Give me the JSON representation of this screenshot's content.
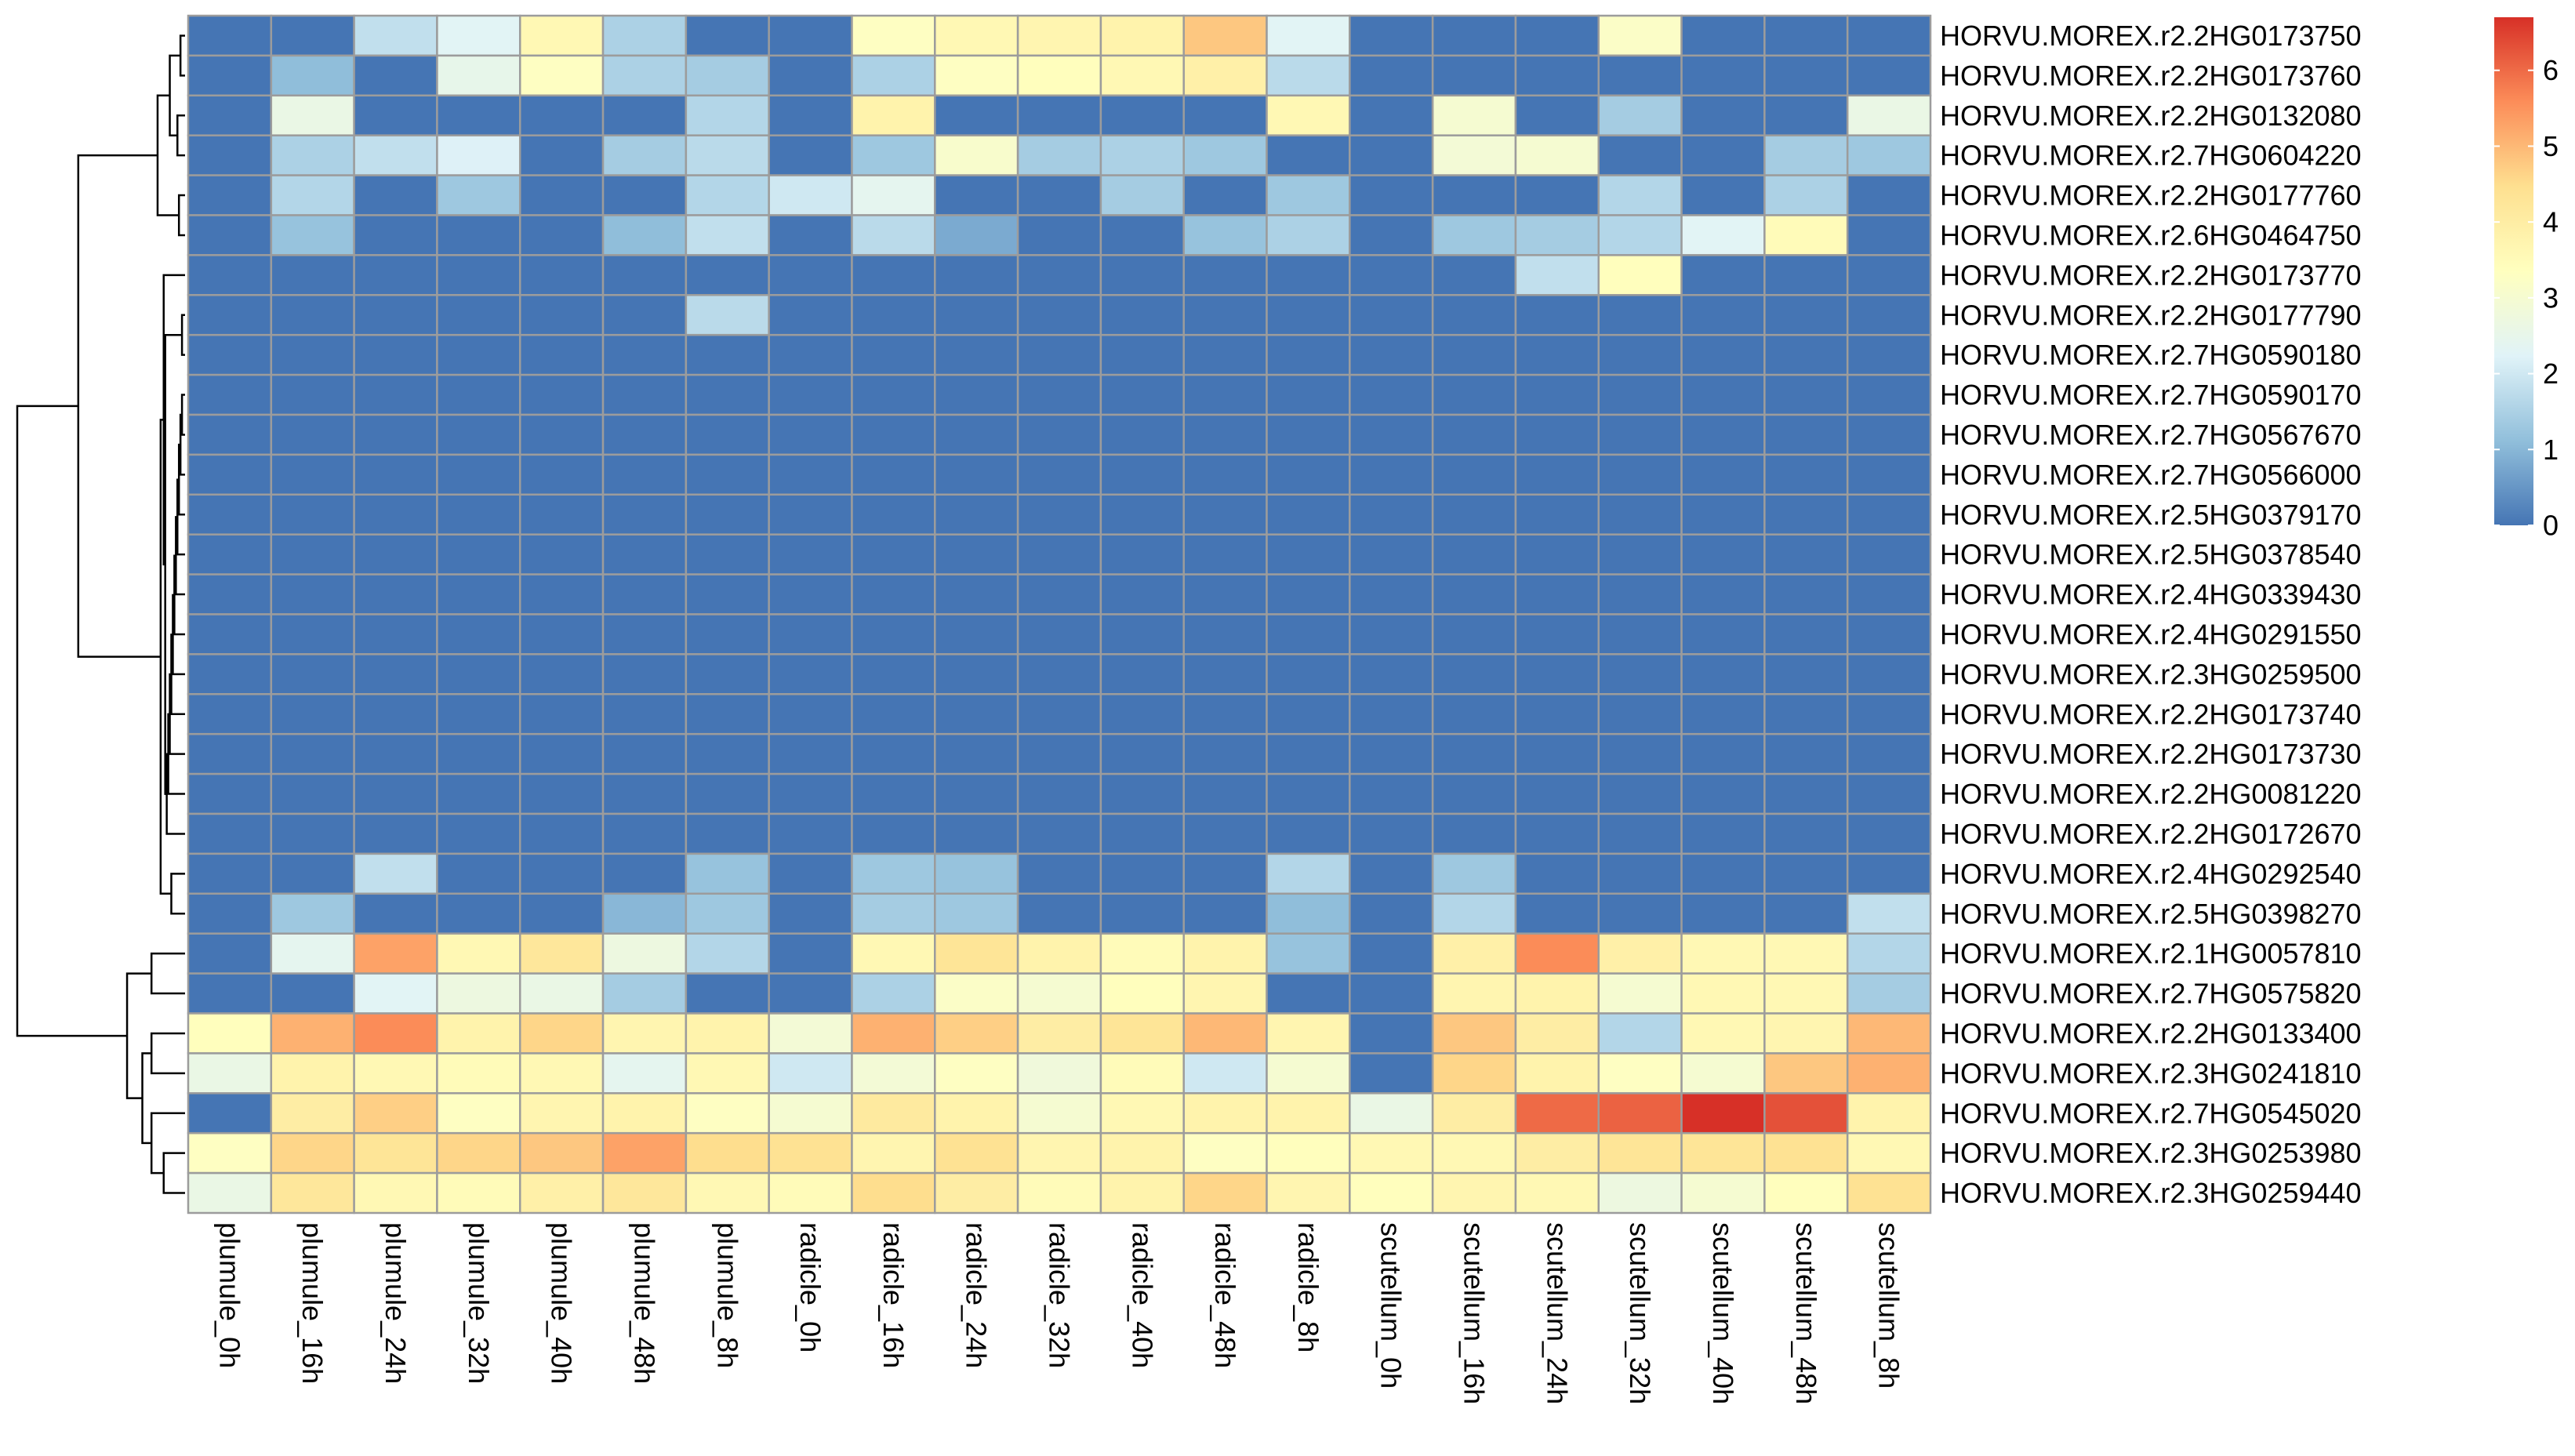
{
  "chart_data": {
    "type": "heatmap",
    "title": "",
    "xlabel": "",
    "ylabel": "",
    "columns": [
      "plumule_0h",
      "plumule_16h",
      "plumule_24h",
      "plumule_32h",
      "plumule_40h",
      "plumule_48h",
      "plumule_8h",
      "radicle_0h",
      "radicle_16h",
      "radicle_24h",
      "radicle_32h",
      "radicle_40h",
      "radicle_48h",
      "radicle_8h",
      "scutellum_0h",
      "scutellum_16h",
      "scutellum_24h",
      "scutellum_32h",
      "scutellum_40h",
      "scutellum_48h",
      "scutellum_8h"
    ],
    "rows": [
      "HORVU.MOREX.r2.2HG0173750",
      "HORVU.MOREX.r2.2HG0173760",
      "HORVU.MOREX.r2.2HG0132080",
      "HORVU.MOREX.r2.7HG0604220",
      "HORVU.MOREX.r2.2HG0177760",
      "HORVU.MOREX.r2.6HG0464750",
      "HORVU.MOREX.r2.2HG0173770",
      "HORVU.MOREX.r2.2HG0177790",
      "HORVU.MOREX.r2.7HG0590180",
      "HORVU.MOREX.r2.7HG0590170",
      "HORVU.MOREX.r2.7HG0567670",
      "HORVU.MOREX.r2.7HG0566000",
      "HORVU.MOREX.r2.5HG0379170",
      "HORVU.MOREX.r2.5HG0378540",
      "HORVU.MOREX.r2.4HG0339430",
      "HORVU.MOREX.r2.4HG0291550",
      "HORVU.MOREX.r2.3HG0259500",
      "HORVU.MOREX.r2.2HG0173740",
      "HORVU.MOREX.r2.2HG0173730",
      "HORVU.MOREX.r2.2HG0081220",
      "HORVU.MOREX.r2.2HG0172670",
      "HORVU.MOREX.r2.4HG0292540",
      "HORVU.MOREX.r2.5HG0398270",
      "HORVU.MOREX.r2.1HG0057810",
      "HORVU.MOREX.r2.7HG0575820",
      "HORVU.MOREX.r2.2HG0133400",
      "HORVU.MOREX.r2.3HG0241810",
      "HORVU.MOREX.r2.7HG0545020",
      "HORVU.MOREX.r2.3HG0253980",
      "HORVU.MOREX.r2.3HG0259440"
    ],
    "values": [
      [
        0,
        0,
        1.8,
        2.3,
        3.6,
        1.5,
        0,
        0,
        3.3,
        3.6,
        3.7,
        3.8,
        4.8,
        2.3,
        0,
        0,
        0,
        3.2,
        0,
        0,
        0
      ],
      [
        0,
        1.1,
        0,
        2.5,
        3.3,
        1.5,
        1.4,
        0,
        1.5,
        3.3,
        3.4,
        3.6,
        3.9,
        1.7,
        0,
        0,
        0,
        0,
        0,
        0,
        0
      ],
      [
        0,
        2.6,
        0,
        0,
        0,
        0,
        1.6,
        0,
        3.8,
        0,
        0,
        0,
        0,
        3.6,
        0,
        3.0,
        0,
        1.4,
        0,
        0,
        2.6
      ],
      [
        0,
        1.5,
        1.8,
        2.2,
        0,
        1.4,
        1.7,
        0,
        1.3,
        3.1,
        1.4,
        1.5,
        1.3,
        0,
        0,
        2.9,
        3.0,
        0,
        0,
        1.4,
        1.3
      ],
      [
        0,
        1.6,
        0,
        1.3,
        0,
        0,
        1.6,
        2.0,
        2.4,
        0,
        0,
        1.4,
        0,
        1.3,
        0,
        0,
        0,
        1.6,
        0,
        1.5,
        0
      ],
      [
        0,
        1.2,
        0,
        0,
        0,
        1.1,
        1.8,
        0,
        1.7,
        0.8,
        0,
        0,
        1.2,
        1.5,
        0,
        1.3,
        1.4,
        1.6,
        2.3,
        3.5,
        0
      ],
      [
        0,
        0,
        0,
        0,
        0,
        0,
        0,
        0,
        0,
        0,
        0,
        0,
        0,
        0,
        0,
        0,
        1.8,
        3.4,
        0,
        0,
        0
      ],
      [
        0,
        0,
        0,
        0,
        0,
        0,
        1.7,
        0,
        0,
        0,
        0,
        0,
        0,
        0,
        0,
        0,
        0,
        0,
        0,
        0,
        0
      ],
      [
        0,
        0,
        0,
        0,
        0,
        0,
        0,
        0,
        0,
        0,
        0,
        0,
        0,
        0,
        0,
        0,
        0,
        0,
        0,
        0,
        0
      ],
      [
        0,
        0,
        0,
        0,
        0,
        0,
        0,
        0,
        0,
        0,
        0,
        0,
        0,
        0,
        0,
        0,
        0,
        0,
        0,
        0,
        0
      ],
      [
        0,
        0,
        0,
        0,
        0,
        0,
        0,
        0,
        0,
        0,
        0,
        0,
        0,
        0,
        0,
        0,
        0,
        0,
        0,
        0,
        0
      ],
      [
        0,
        0,
        0,
        0,
        0,
        0,
        0,
        0,
        0,
        0,
        0,
        0,
        0,
        0,
        0,
        0,
        0,
        0,
        0,
        0,
        0
      ],
      [
        0,
        0,
        0,
        0,
        0,
        0,
        0,
        0,
        0,
        0,
        0,
        0,
        0,
        0,
        0,
        0,
        0,
        0,
        0,
        0,
        0
      ],
      [
        0,
        0,
        0,
        0,
        0,
        0,
        0,
        0,
        0,
        0,
        0,
        0,
        0,
        0,
        0,
        0,
        0,
        0,
        0,
        0,
        0
      ],
      [
        0,
        0,
        0,
        0,
        0,
        0,
        0,
        0,
        0,
        0,
        0,
        0,
        0,
        0,
        0,
        0,
        0,
        0,
        0,
        0,
        0
      ],
      [
        0,
        0,
        0,
        0,
        0,
        0,
        0,
        0,
        0,
        0,
        0,
        0,
        0,
        0,
        0,
        0,
        0,
        0,
        0,
        0,
        0
      ],
      [
        0,
        0,
        0,
        0,
        0,
        0,
        0,
        0,
        0,
        0,
        0,
        0,
        0,
        0,
        0,
        0,
        0,
        0,
        0,
        0,
        0
      ],
      [
        0,
        0,
        0,
        0,
        0,
        0,
        0,
        0,
        0,
        0,
        0,
        0,
        0,
        0,
        0,
        0,
        0,
        0,
        0,
        0,
        0
      ],
      [
        0,
        0,
        0,
        0,
        0,
        0,
        0,
        0,
        0,
        0,
        0,
        0,
        0,
        0,
        0,
        0,
        0,
        0,
        0,
        0,
        0
      ],
      [
        0,
        0,
        0,
        0,
        0,
        0,
        0,
        0,
        0,
        0,
        0,
        0,
        0,
        0,
        0,
        0,
        0,
        0,
        0,
        0,
        0
      ],
      [
        0,
        0,
        0,
        0,
        0,
        0,
        0,
        0,
        0,
        0,
        0,
        0,
        0,
        0,
        0,
        0,
        0,
        0,
        0,
        0,
        0
      ],
      [
        0,
        0,
        1.8,
        0,
        0,
        0,
        1.2,
        0,
        1.3,
        1.2,
        0,
        0,
        0,
        1.6,
        0,
        1.3,
        0,
        0,
        0,
        0,
        0
      ],
      [
        0,
        1.3,
        0,
        0,
        0,
        1.0,
        1.3,
        0,
        1.4,
        1.3,
        0,
        0,
        0,
        1.1,
        0,
        1.6,
        0,
        0,
        0,
        0,
        1.8
      ],
      [
        0,
        2.4,
        5.3,
        3.6,
        4.2,
        2.7,
        1.6,
        0,
        3.6,
        4.3,
        3.8,
        3.5,
        3.8,
        1.2,
        0,
        3.9,
        5.6,
        3.9,
        3.6,
        3.6,
        1.6
      ],
      [
        0,
        0,
        2.3,
        2.7,
        2.6,
        1.4,
        0,
        0,
        1.5,
        3.2,
        3.0,
        3.4,
        3.7,
        0,
        0,
        3.7,
        3.8,
        3.0,
        3.6,
        3.6,
        1.4
      ],
      [
        3.4,
        5.1,
        5.6,
        3.8,
        4.6,
        3.7,
        3.8,
        2.9,
        5.1,
        4.7,
        4.0,
        4.3,
        5.0,
        3.7,
        0,
        4.8,
        4.0,
        1.6,
        3.6,
        3.7,
        5.0
      ],
      [
        2.6,
        3.8,
        3.6,
        3.5,
        3.6,
        2.4,
        3.6,
        2.0,
        2.9,
        3.3,
        2.8,
        3.5,
        2.0,
        3.0,
        0,
        4.6,
        3.8,
        3.3,
        3.0,
        4.8,
        5.1
      ],
      [
        0,
        4.0,
        4.7,
        3.3,
        3.7,
        3.8,
        3.3,
        3.0,
        4.1,
        3.8,
        3.0,
        3.6,
        3.8,
        3.8,
        2.6,
        4.0,
        6.0,
        6.1,
        6.7,
        6.3,
        3.8
      ],
      [
        3.3,
        4.6,
        4.3,
        4.6,
        4.8,
        5.3,
        4.5,
        4.4,
        3.7,
        4.4,
        3.7,
        3.8,
        3.3,
        3.4,
        3.6,
        3.6,
        4.0,
        4.3,
        4.3,
        4.4,
        3.6
      ],
      [
        2.6,
        4.2,
        3.6,
        3.5,
        3.9,
        4.2,
        3.6,
        3.5,
        4.5,
        4.0,
        3.5,
        3.8,
        4.6,
        3.7,
        3.4,
        3.7,
        3.6,
        2.7,
        3.0,
        3.4,
        4.4
      ]
    ],
    "color_scale": [
      "#4575B4",
      "#91BFDB",
      "#E0F3F8",
      "#FFFFBF",
      "#FEE090",
      "#FC8D59",
      "#D73027"
    ],
    "value_range": [
      0,
      6.7
    ],
    "cell_border_color": "#9C9C9C",
    "legend": {
      "ticks": [
        0,
        1,
        2,
        3,
        4,
        5,
        6
      ],
      "tick_labels": [
        "0",
        "1",
        "2",
        "3",
        "4",
        "5",
        "6"
      ],
      "placement": "right"
    },
    "row_dendrogram": [
      [
        0,
        1,
        0.015
      ],
      [
        2,
        3,
        0.025
      ],
      [
        4,
        5,
        0.02
      ],
      [
        30,
        31,
        0.05
      ],
      [
        32,
        33,
        0.09
      ],
      [
        7,
        8,
        0.01
      ],
      [
        9,
        10,
        0.01
      ],
      [
        36,
        11,
        0.015
      ],
      [
        37,
        12,
        0.02
      ],
      [
        38,
        13,
        0.025
      ],
      [
        39,
        14,
        0.03
      ],
      [
        40,
        15,
        0.035
      ],
      [
        41,
        16,
        0.04
      ],
      [
        42,
        17,
        0.045
      ],
      [
        43,
        18,
        0.05
      ],
      [
        44,
        19,
        0.055
      ],
      [
        45,
        20,
        0.06
      ],
      [
        35,
        46,
        0.065
      ],
      [
        6,
        47,
        0.07
      ],
      [
        21,
        22,
        0.045
      ],
      [
        48,
        49,
        0.08
      ],
      [
        34,
        50,
        0.35
      ],
      [
        23,
        24,
        0.11
      ],
      [
        25,
        26,
        0.11
      ],
      [
        28,
        29,
        0.07
      ],
      [
        27,
        54,
        0.11
      ],
      [
        53,
        55,
        0.14
      ],
      [
        52,
        56,
        0.19
      ],
      [
        51,
        57,
        0.55
      ]
    ]
  }
}
